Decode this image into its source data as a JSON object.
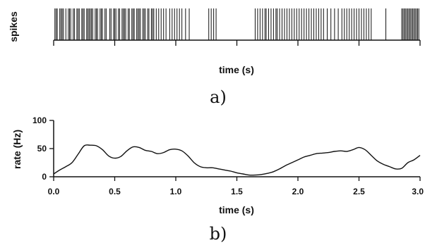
{
  "chart_data": [
    {
      "panel_label": "a)",
      "type": "raster",
      "ylabel": "spikes",
      "xlabel": "time (s)",
      "xlim": [
        0.0,
        3.0
      ],
      "spike_times": [
        0.01,
        0.02,
        0.03,
        0.05,
        0.06,
        0.07,
        0.08,
        0.1,
        0.12,
        0.13,
        0.14,
        0.16,
        0.17,
        0.19,
        0.2,
        0.21,
        0.23,
        0.24,
        0.25,
        0.27,
        0.28,
        0.29,
        0.3,
        0.31,
        0.32,
        0.34,
        0.35,
        0.36,
        0.38,
        0.39,
        0.4,
        0.42,
        0.43,
        0.46,
        0.47,
        0.49,
        0.5,
        0.51,
        0.53,
        0.54,
        0.56,
        0.57,
        0.58,
        0.59,
        0.61,
        0.62,
        0.64,
        0.65,
        0.66,
        0.68,
        0.69,
        0.7,
        0.71,
        0.73,
        0.74,
        0.75,
        0.77,
        0.78,
        0.8,
        0.81,
        0.82,
        0.84,
        0.86,
        0.88,
        0.9,
        0.92,
        0.95,
        0.97,
        0.99,
        1.01,
        1.03,
        1.05,
        1.08,
        1.11,
        1.27,
        1.29,
        1.31,
        1.33,
        1.65,
        1.67,
        1.69,
        1.71,
        1.73,
        1.74,
        1.76,
        1.78,
        1.8,
        1.82,
        1.83,
        1.85,
        1.87,
        1.89,
        1.91,
        1.93,
        1.95,
        1.97,
        1.99,
        2.01,
        2.03,
        2.05,
        2.07,
        2.09,
        2.11,
        2.13,
        2.15,
        2.17,
        2.19,
        2.21,
        2.24,
        2.27,
        2.3,
        2.33,
        2.36,
        2.38,
        2.4,
        2.42,
        2.44,
        2.46,
        2.48,
        2.5,
        2.52,
        2.54,
        2.56,
        2.58,
        2.6,
        2.72,
        2.85,
        2.86,
        2.87,
        2.88,
        2.89,
        2.9,
        2.91,
        2.92,
        2.93,
        2.94,
        2.95,
        2.96,
        2.97,
        2.98,
        2.99
      ]
    },
    {
      "panel_label": "b)",
      "type": "line",
      "xlabel": "time (s)",
      "ylabel": "rate (Hz)",
      "xlim": [
        0.0,
        3.0
      ],
      "ylim": [
        0,
        100
      ],
      "xticks": [
        "0.0",
        "0.5",
        "1.0",
        "1.5",
        "2.0",
        "2.5",
        "3.0"
      ],
      "yticks": [
        "0",
        "50",
        "100"
      ],
      "x": [
        0.0,
        0.05,
        0.1,
        0.15,
        0.2,
        0.25,
        0.3,
        0.35,
        0.4,
        0.45,
        0.5,
        0.55,
        0.6,
        0.65,
        0.7,
        0.75,
        0.8,
        0.85,
        0.9,
        0.95,
        1.0,
        1.05,
        1.1,
        1.15,
        1.2,
        1.25,
        1.3,
        1.35,
        1.4,
        1.45,
        1.5,
        1.55,
        1.6,
        1.65,
        1.7,
        1.75,
        1.8,
        1.85,
        1.9,
        1.95,
        2.0,
        2.05,
        2.1,
        2.15,
        2.2,
        2.25,
        2.3,
        2.35,
        2.4,
        2.45,
        2.5,
        2.55,
        2.6,
        2.65,
        2.7,
        2.75,
        2.8,
        2.85,
        2.9,
        2.95,
        3.0
      ],
      "y": [
        5,
        12,
        18,
        25,
        40,
        55,
        56,
        55,
        48,
        37,
        33,
        36,
        46,
        53,
        52,
        47,
        45,
        41,
        43,
        48,
        49,
        46,
        37,
        25,
        18,
        16,
        16,
        14,
        12,
        10,
        7,
        5,
        3,
        3,
        4,
        6,
        9,
        14,
        20,
        25,
        30,
        35,
        38,
        41,
        42,
        43,
        45,
        46,
        45,
        48,
        52,
        48,
        38,
        28,
        22,
        18,
        14,
        15,
        25,
        30,
        38
      ]
    }
  ],
  "captions": {
    "a": "a)",
    "b": "b)"
  }
}
